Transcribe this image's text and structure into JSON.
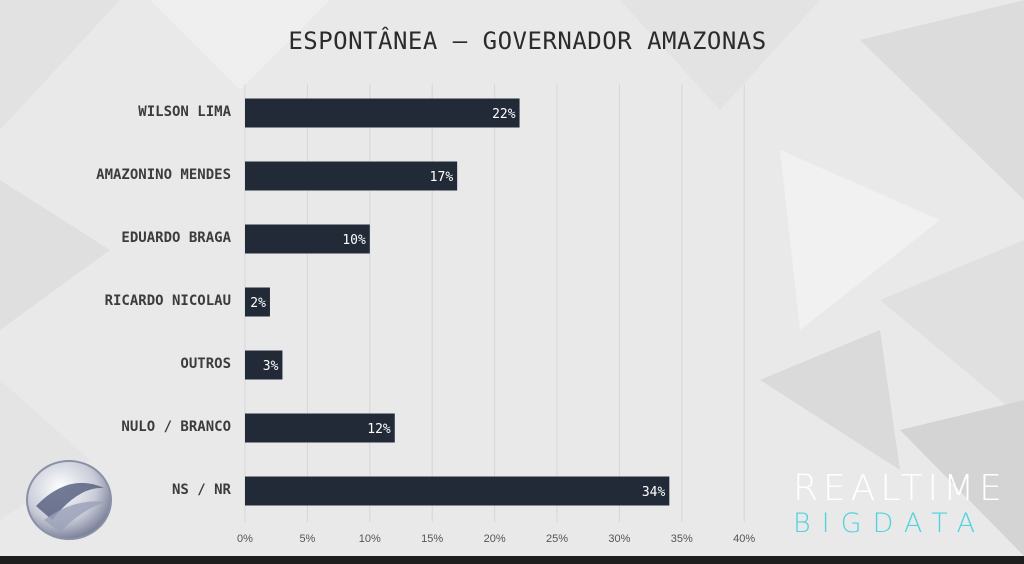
{
  "chart_data": {
    "type": "bar",
    "orientation": "horizontal",
    "title": "ESPONTÂNEA – GOVERNADOR AMAZONAS",
    "categories": [
      "WILSON LIMA",
      "AMAZONINO MENDES",
      "EDUARDO BRAGA",
      "RICARDO NICOLAU",
      "OUTROS",
      "NULO / BRANCO",
      "NS / NR"
    ],
    "values": [
      22,
      17,
      10,
      2,
      3,
      12,
      34
    ],
    "value_labels": [
      "22%",
      "17%",
      "10%",
      "2%",
      "3%",
      "12%",
      "34%"
    ],
    "xlim": [
      0,
      40
    ],
    "x_ticks": [
      0,
      5,
      10,
      15,
      20,
      25,
      30,
      35,
      40
    ],
    "x_tick_labels": [
      "0%",
      "5%",
      "10%",
      "15%",
      "20%",
      "25%",
      "30%",
      "35%",
      "40%"
    ],
    "grid": true,
    "bar_color": "#222a38"
  },
  "branding": {
    "line1": "REALTIME",
    "line2": "BIGDATA",
    "line2_color": "#4fd3dc",
    "logo": "record-tv-logo"
  }
}
